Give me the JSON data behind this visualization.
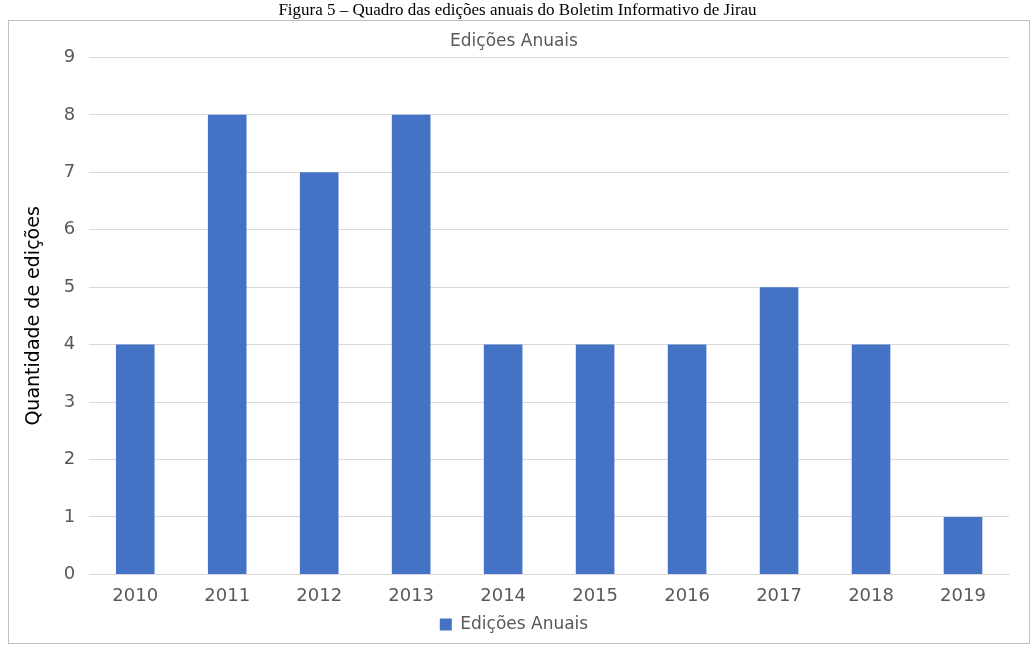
{
  "chart_data": {
    "type": "bar",
    "title": "Figura 5 – Quadro das edições anuais do Boletim Informativo de Jirau",
    "subtitle": "Edições Anuais",
    "ylabel": "Quantidade de edições",
    "categories": [
      "2010",
      "2011",
      "2012",
      "2013",
      "2014",
      "2015",
      "2016",
      "2017",
      "2018",
      "2019"
    ],
    "series": [
      {
        "name": "Edições Anuais",
        "color": "#4472c4",
        "values": [
          4,
          8,
          7,
          8,
          4,
          4,
          4,
          5,
          4,
          1
        ]
      }
    ],
    "ylim": [
      0,
      9
    ],
    "yticks": [
      0,
      1,
      2,
      3,
      4,
      5,
      6,
      7,
      8,
      9
    ],
    "grid": "y",
    "legend": "bottom"
  }
}
